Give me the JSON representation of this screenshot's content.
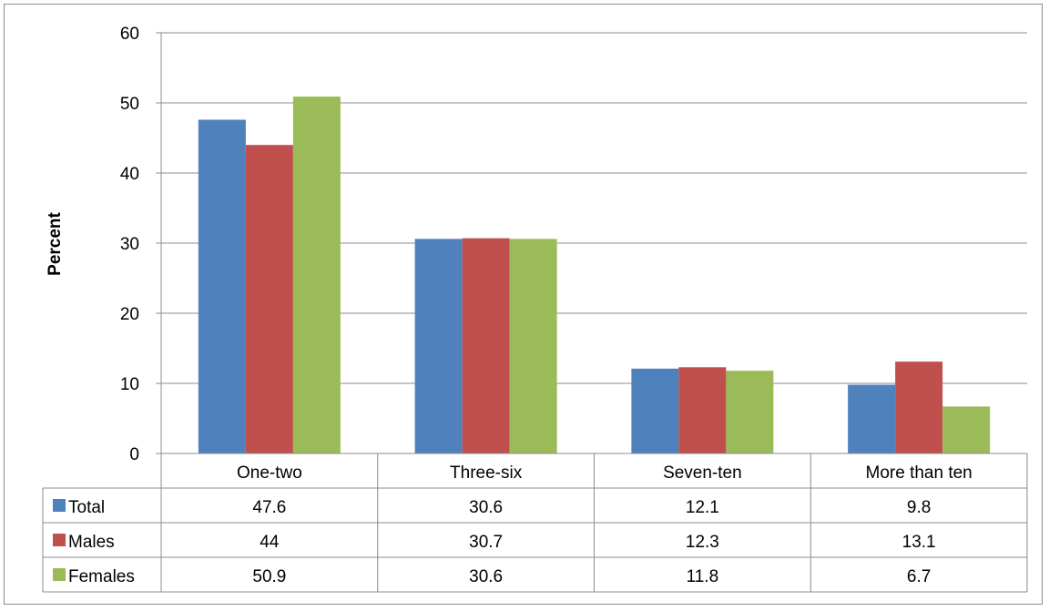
{
  "chart_data": {
    "type": "bar",
    "title": "",
    "xlabel": "",
    "ylabel": "Percent",
    "ylim": [
      0,
      60
    ],
    "yticks": [
      0,
      10,
      20,
      30,
      40,
      50,
      60
    ],
    "grid": true,
    "legend": "data-table",
    "categories": [
      "One-two",
      "Three-six",
      "Seven-ten",
      "More than ten"
    ],
    "series": [
      {
        "name": "Total",
        "color": "#4f81bd",
        "values": [
          47.6,
          30.6,
          12.1,
          9.8
        ],
        "labels": [
          "47.6",
          "30.6",
          "12.1",
          "9.8"
        ]
      },
      {
        "name": "Males",
        "color": "#c0504d",
        "values": [
          44,
          30.7,
          12.3,
          13.1
        ],
        "labels": [
          "44",
          "30.7",
          "12.3",
          "13.1"
        ]
      },
      {
        "name": "Females",
        "color": "#9bbb59",
        "values": [
          50.9,
          30.6,
          11.8,
          6.7
        ],
        "labels": [
          "50.9",
          "30.6",
          "11.8",
          "6.7"
        ]
      }
    ]
  }
}
